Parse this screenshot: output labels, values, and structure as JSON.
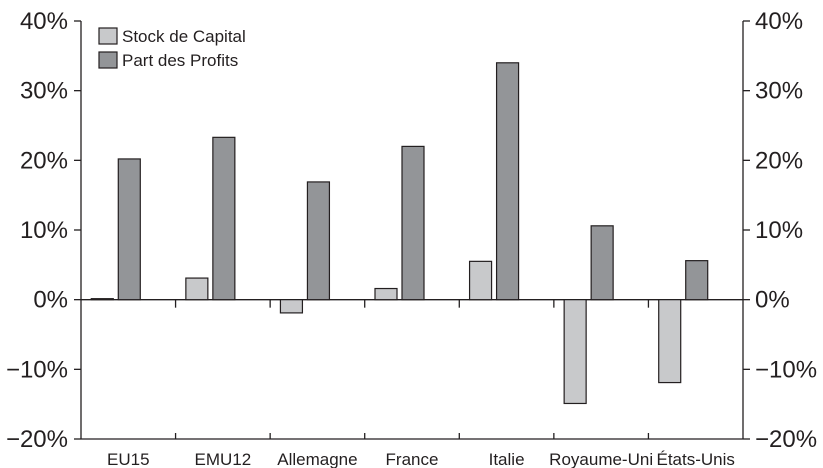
{
  "chart_data": {
    "type": "bar",
    "categories": [
      "EU15",
      "EMU12",
      "Allemagne",
      "France",
      "Italie",
      "Royaume-Uni",
      "États-Unis"
    ],
    "series": [
      {
        "name": "Stock de Capital",
        "color": "#c8c9cb",
        "values": [
          0.0,
          3.1,
          -1.9,
          1.6,
          5.5,
          -14.9,
          -11.9
        ]
      },
      {
        "name": "Part des Profits",
        "color": "#939598",
        "values": [
          20.2,
          23.3,
          16.9,
          22.0,
          34.0,
          10.6,
          5.6
        ]
      }
    ],
    "yticks": [
      "40%",
      "30%",
      "20%",
      "10%",
      "0%",
      "−10%",
      "−20%"
    ],
    "ytick_values": [
      40,
      30,
      20,
      10,
      0,
      -10,
      -20
    ],
    "ylim": [
      -20,
      40
    ],
    "xlabel": "",
    "ylabel": "",
    "grid": false,
    "legend_position": "top-left"
  }
}
